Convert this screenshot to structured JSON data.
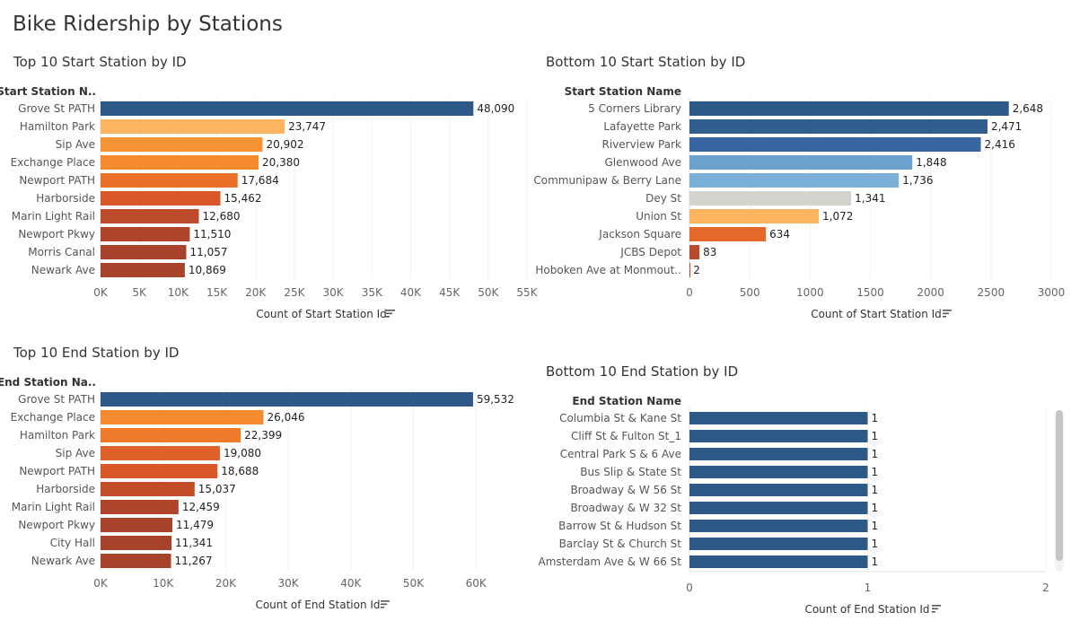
{
  "title": "Bike Ridership by Stations",
  "sort_icon": "sort-descending-icon",
  "chart_data": [
    {
      "type": "bar",
      "orientation": "horizontal",
      "title": "Top 10 Start Station by ID",
      "ylabel": "Start Station N..",
      "xlabel": "Count of Start Station Id",
      "categories": [
        "Grove St PATH",
        "Hamilton Park",
        "Sip Ave",
        "Exchange Place",
        "Newport PATH",
        "Harborside",
        "Marin Light Rail",
        "Newport Pkwy",
        "Morris Canal",
        "Newark Ave"
      ],
      "values": [
        48090,
        23747,
        20902,
        20380,
        17684,
        15462,
        12680,
        11510,
        11057,
        10869
      ],
      "value_labels": [
        "48,090",
        "23,747",
        "20,902",
        "20,380",
        "17,684",
        "15,462",
        "12,680",
        "11,510",
        "11,057",
        "10,869"
      ],
      "bar_colors": [
        "#2c5987",
        "#fcb461",
        "#f69535",
        "#f58a2e",
        "#ea6f27",
        "#d9582a",
        "#bc4a2b",
        "#ae452a",
        "#a7432a",
        "#a7432a"
      ],
      "xticks": [
        "0K",
        "5K",
        "10K",
        "15K",
        "20K",
        "25K",
        "30K",
        "35K",
        "40K",
        "45K",
        "50K",
        "55K"
      ],
      "xlim": [
        0,
        55000
      ],
      "grid": true
    },
    {
      "type": "bar",
      "orientation": "horizontal",
      "title": "Bottom 10 Start Station by ID",
      "ylabel": "Start Station Name",
      "xlabel": "Count of Start Station Id",
      "categories": [
        "5 Corners Library",
        "Lafayette Park",
        "Riverview Park",
        "Glenwood Ave",
        "Communipaw & Berry Lane",
        "Dey St",
        "Union St",
        "Jackson Square",
        "JCBS Depot",
        "Hoboken Ave at Monmout.."
      ],
      "values": [
        2648,
        2471,
        2416,
        1848,
        1736,
        1341,
        1072,
        634,
        83,
        2
      ],
      "value_labels": [
        "2,648",
        "2,471",
        "2,416",
        "1,848",
        "1,736",
        "1,341",
        "1,072",
        "634",
        "83",
        "2"
      ],
      "bar_colors": [
        "#2c5987",
        "#2f5e8f",
        "#3866a1",
        "#6ba2cd",
        "#7bb0d9",
        "#d4d3cd",
        "#fcb461",
        "#e5682b",
        "#b94a2a",
        "#b94a2a"
      ],
      "xticks": [
        "0",
        "500",
        "1000",
        "1500",
        "2000",
        "2500",
        "3000"
      ],
      "xlim": [
        0,
        3000
      ],
      "grid": true
    },
    {
      "type": "bar",
      "orientation": "horizontal",
      "title": "Top 10 End Station by ID",
      "ylabel": "End Station Na..",
      "xlabel": "Count of End Station Id",
      "categories": [
        "Grove St PATH",
        "Exchange Place",
        "Hamilton Park",
        "Sip Ave",
        "Newport PATH",
        "Harborside",
        "Marin Light Rail",
        "Newport Pkwy",
        "City Hall",
        "Newark Ave"
      ],
      "values": [
        59532,
        26046,
        22399,
        19080,
        18688,
        15037,
        12459,
        11479,
        11341,
        11267
      ],
      "value_labels": [
        "59,532",
        "26,046",
        "22,399",
        "19,080",
        "18,688",
        "15,037",
        "12,459",
        "11,479",
        "11,341",
        "11,267"
      ],
      "bar_colors": [
        "#2c5987",
        "#f58a2e",
        "#ef7a2a",
        "#de6129",
        "#d9582a",
        "#c24d2b",
        "#ae452a",
        "#a7432a",
        "#a7432a",
        "#a7432a"
      ],
      "xticks": [
        "0K",
        "10K",
        "20K",
        "30K",
        "40K",
        "50K",
        "60K"
      ],
      "xlim": [
        0,
        67000
      ],
      "grid": true
    },
    {
      "type": "bar",
      "orientation": "horizontal",
      "title": "Bottom 10 End Station by ID",
      "ylabel": "End Station Name",
      "xlabel": "Count of End Station Id",
      "categories": [
        "Columbia St & Kane St",
        "Cliff St & Fulton St_1",
        "Central Park S & 6 Ave",
        "Bus Slip & State St",
        "Broadway & W 56 St",
        "Broadway & W 32 St",
        "Barrow St & Hudson St",
        "Barclay St & Church St",
        "Amsterdam Ave & W 66 St"
      ],
      "values": [
        1,
        1,
        1,
        1,
        1,
        1,
        1,
        1,
        1
      ],
      "value_labels": [
        "1",
        "1",
        "1",
        "1",
        "1",
        "1",
        "1",
        "1",
        "1"
      ],
      "bar_colors": [
        "#2c5987",
        "#2c5987",
        "#2c5987",
        "#2c5987",
        "#2c5987",
        "#2c5987",
        "#2c5987",
        "#2c5987",
        "#2c5987"
      ],
      "xticks": [
        "0",
        "1",
        "2"
      ],
      "xlim": [
        0,
        2
      ],
      "grid": true
    }
  ]
}
